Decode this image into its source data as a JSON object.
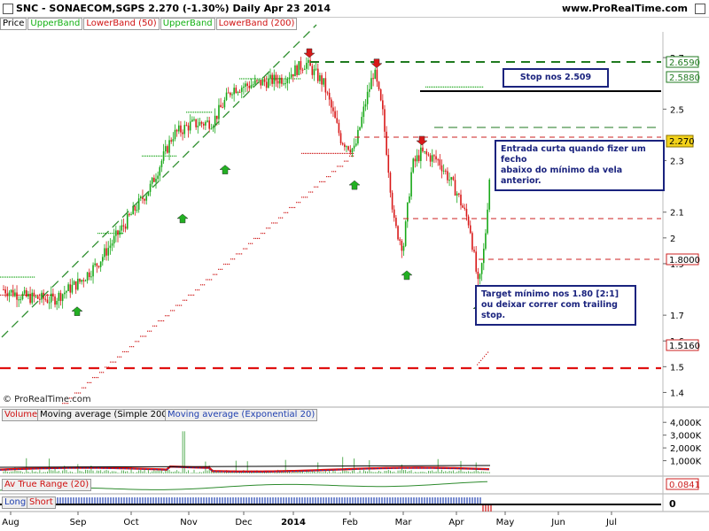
{
  "header": {
    "title": "SNC - SONAECOM,SGPS    2.270 (-1.30%)     Daily  Apr 23 2014",
    "site": "www.ProRealTime.com"
  },
  "legend": [
    "Price",
    "UpperBand",
    "LowerBand (50)",
    "UpperBand",
    "LowerBand (200)"
  ],
  "price_axis_ticks": [
    "2.7",
    "2.5",
    "2.3",
    "2.1",
    "2",
    "1.9",
    "1.7",
    "1.6",
    "1.5",
    "1.4"
  ],
  "price_tags": {
    "high_band": "2.6590",
    "upper": "2.5880",
    "last": "2.270",
    "target": "1.8000",
    "low_band": "1.5160"
  },
  "annotations": {
    "stop": "Stop nos 2.509",
    "entry_line1": "Entrada curta quando fizer um fecho",
    "entry_line2": "abaixo do mínimo da vela anterior.",
    "target_line1": "Target mínimo nos 1.80 [2:1]",
    "target_line2": "ou deixar correr com trailing stop."
  },
  "copyright": "© ProRealTime.com",
  "volume_panel": {
    "legend": [
      "Volume",
      "Moving average (Simple 200)",
      "Moving average (Exponential 20)"
    ],
    "ticks": [
      "4,000K",
      "3,000K",
      "2,000K",
      "1,000K"
    ]
  },
  "atr_panel": {
    "label": "Av True Range (20)",
    "value": "0.0841"
  },
  "signal_panel": {
    "long_label": "Long",
    "short_label": "Short",
    "value": "0"
  },
  "x_labels": [
    "Aug",
    "Sep",
    "Oct",
    "Nov",
    "Dec",
    "2014",
    "Feb",
    "Mar",
    "Apr",
    "May",
    "Jun",
    "Jul"
  ],
  "chart_data": {
    "type": "candlestick",
    "title": "SNC - SONAECOM,SGPS",
    "last_price": 2.27,
    "change_pct": -1.3,
    "date": "Apr 23 2014",
    "ylim": [
      1.35,
      2.8
    ],
    "key_levels": {
      "stop": 2.509,
      "upper_band_high": 2.659,
      "upper_band": 2.588,
      "target": 1.8,
      "lower_band": 1.516,
      "neckline_mar": 1.95,
      "resistance_mar": 2.33
    },
    "series": [
      {
        "name": "Price",
        "x": [
          "Jul",
          "Aug",
          "Sep",
          "Oct",
          "Nov",
          "Dec",
          "2014",
          "Feb",
          "Mar",
          "Apr"
        ],
        "values": [
          1.8,
          1.78,
          1.9,
          2.2,
          2.45,
          2.6,
          2.68,
          2.32,
          1.96,
          2.27
        ]
      }
    ],
    "down_arrow_prices": [
      2.69,
      2.65,
      2.35
    ],
    "up_arrow_prices": [
      1.76,
      2.12,
      2.31,
      2.25,
      1.9,
      1.77
    ],
    "grid": true
  }
}
